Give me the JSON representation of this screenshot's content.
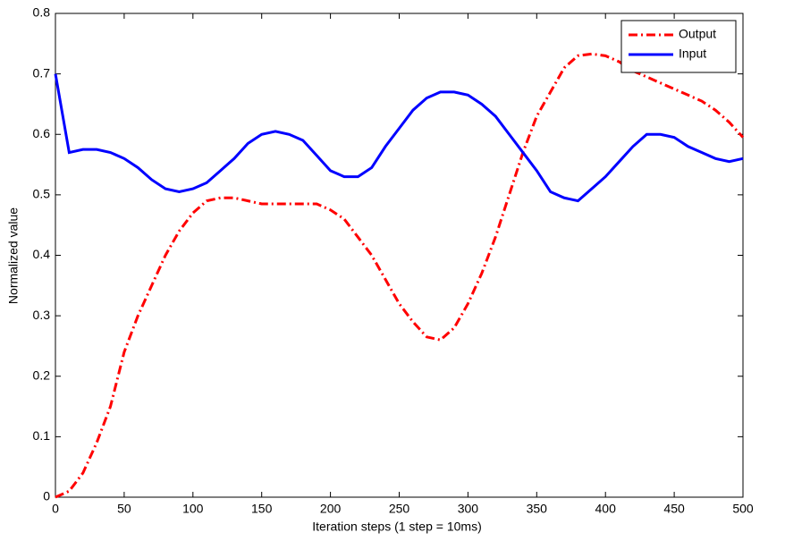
{
  "chart_data": {
    "type": "line",
    "x_label": "Iteration steps (1 step = 10ms)",
    "y_label": "Normalized value",
    "x": [
      0,
      10,
      20,
      30,
      40,
      50,
      60,
      70,
      80,
      90,
      100,
      110,
      120,
      130,
      140,
      150,
      160,
      170,
      180,
      190,
      200,
      210,
      220,
      230,
      240,
      250,
      260,
      270,
      280,
      290,
      300,
      310,
      320,
      330,
      340,
      350,
      360,
      370,
      380,
      390,
      400,
      410,
      420,
      430,
      440,
      450,
      460,
      470,
      480,
      490,
      500
    ],
    "series": [
      {
        "name": "Output",
        "color": "#ff0000",
        "dash": "dashdot",
        "values": [
          0.0,
          0.01,
          0.04,
          0.09,
          0.15,
          0.24,
          0.3,
          0.35,
          0.4,
          0.44,
          0.47,
          0.49,
          0.495,
          0.495,
          0.49,
          0.485,
          0.485,
          0.485,
          0.485,
          0.485,
          0.475,
          0.46,
          0.43,
          0.4,
          0.36,
          0.32,
          0.29,
          0.265,
          0.26,
          0.28,
          0.32,
          0.37,
          0.43,
          0.5,
          0.57,
          0.63,
          0.67,
          0.71,
          0.73,
          0.733,
          0.73,
          0.72,
          0.705,
          0.695,
          0.685,
          0.675,
          0.665,
          0.655,
          0.64,
          0.62,
          0.595
        ]
      },
      {
        "name": "Input",
        "color": "#0000ff",
        "dash": "solid",
        "values": [
          0.7,
          0.57,
          0.575,
          0.575,
          0.57,
          0.56,
          0.545,
          0.525,
          0.51,
          0.505,
          0.51,
          0.52,
          0.54,
          0.56,
          0.585,
          0.6,
          0.605,
          0.6,
          0.59,
          0.565,
          0.54,
          0.53,
          0.53,
          0.545,
          0.58,
          0.61,
          0.64,
          0.66,
          0.67,
          0.67,
          0.665,
          0.65,
          0.63,
          0.6,
          0.57,
          0.54,
          0.505,
          0.495,
          0.49,
          0.51,
          0.53,
          0.555,
          0.58,
          0.6,
          0.6,
          0.595,
          0.58,
          0.57,
          0.56,
          0.555,
          0.56
        ]
      }
    ],
    "xlim": [
      0,
      500
    ],
    "ylim": [
      0,
      0.8
    ],
    "xticks": [
      0,
      50,
      100,
      150,
      200,
      250,
      300,
      350,
      400,
      450,
      500
    ],
    "yticks": [
      0,
      0.1,
      0.2,
      0.3,
      0.4,
      0.5,
      0.6,
      0.7,
      0.8
    ],
    "grid": false,
    "legend": "upper right"
  }
}
